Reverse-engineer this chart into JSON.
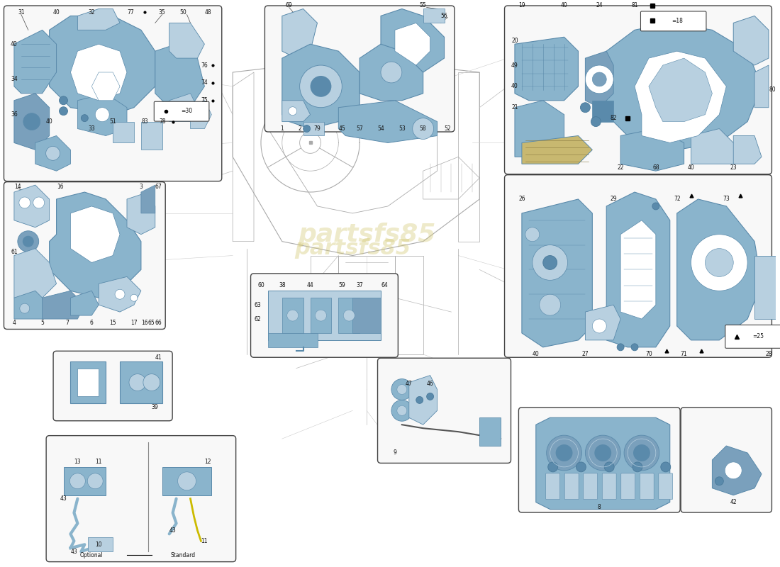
{
  "background_color": "#ffffff",
  "part_color": "#8ab4cc",
  "part_color_dark": "#5a8aab",
  "part_color_light": "#b8d0e0",
  "part_color_mid": "#7aa0bc",
  "border_color": "#444444",
  "box_bg": "#f8f8f8",
  "text_color": "#111111",
  "line_color": "#555555",
  "watermark": "partsfs85",
  "watermark_color": "#d4c875",
  "center_sketch_color": "#cccccc",
  "car_line_color": "#aaaaaa"
}
